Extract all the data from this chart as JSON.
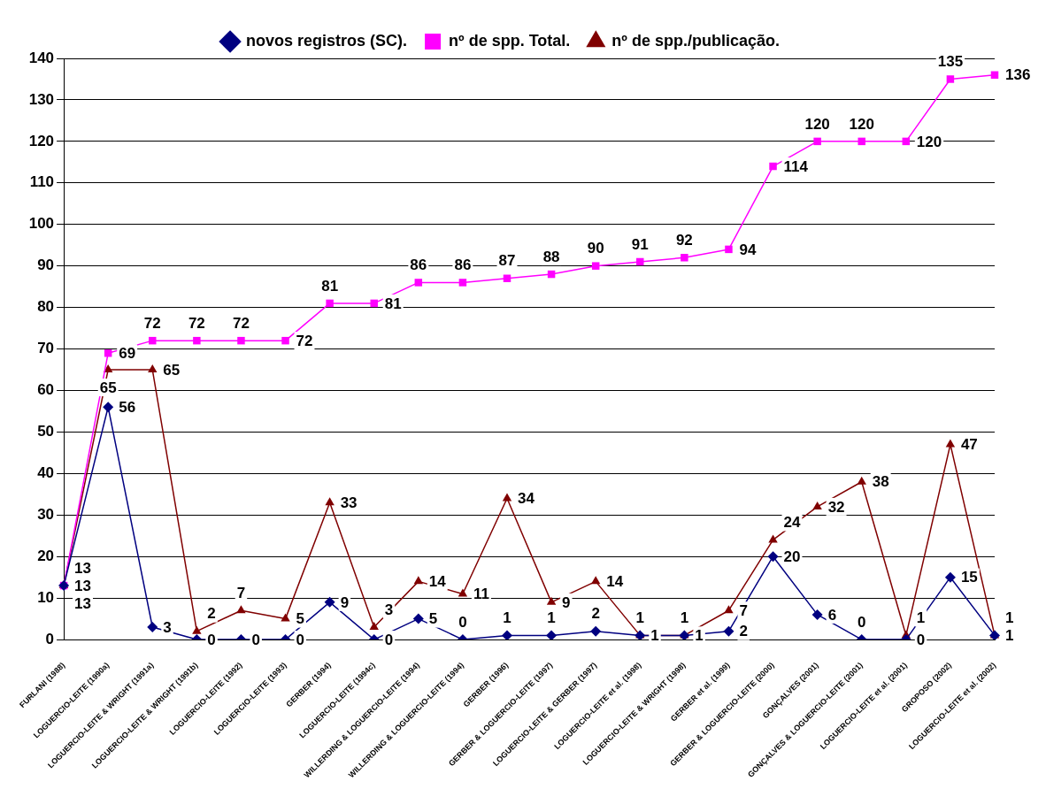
{
  "chart_data": {
    "type": "line",
    "categories": [
      "FURLANI (1988)",
      "LOGUERCIO-LEITE (1990a)",
      "LOGUERCIO-LEITE & WRIGHT (1991a)",
      "LOGUERCIO-LEITE & WRIGHT (1991b)",
      "LOGUERCIO-LEITE (1992)",
      "LOGUERCIO-LEITE (1993)",
      "GERBER (1994)",
      "LOGUERCIO-LEITE (1994c)",
      "WILLERDING & LOGUERCIO-LEITE (1994)",
      "WILLERDING & LOGUERCIO-LEITE (1994)",
      "GERBER (1996)",
      "GERBER & LOGUERCIO-LEITE (1997)",
      "LOGUERCIO-LEITE & GERBER (1997)",
      "LOGUERCIO-LEITE et al. (1998)",
      "LOGUERCIO-LEITE & WRIGHT (1998)",
      "GERBER et al. (1999)",
      "GERBER & LOGUERCIO-LEITE (2000)",
      "GONÇALVES (2001)",
      "GONÇALVES & LOGUERCIO-LEITE (2001)",
      "LOGUERCIO-LEITE et al. (2001)",
      "GROPOSO (2002)",
      "LOGUERCIO-LEITE et al. (2002)"
    ],
    "series": [
      {
        "name": "novos registros (SC).",
        "color": "#000080",
        "marker": "diamond",
        "values": [
          13,
          56,
          3,
          0,
          0,
          0,
          9,
          0,
          5,
          0,
          1,
          1,
          2,
          1,
          1,
          2,
          20,
          6,
          0,
          0,
          15,
          1
        ]
      },
      {
        "name": "nº de spp. Total.",
        "color": "#ff00ff",
        "marker": "square",
        "values": [
          13,
          69,
          72,
          72,
          72,
          72,
          81,
          81,
          86,
          86,
          87,
          88,
          90,
          91,
          92,
          94,
          114,
          120,
          120,
          120,
          135,
          136
        ]
      },
      {
        "name": "nº de spp./publicação.",
        "color": "#800000",
        "marker": "triangle",
        "values": [
          13,
          65,
          65,
          2,
          7,
          5,
          33,
          3,
          14,
          11,
          34,
          9,
          14,
          1,
          1,
          7,
          24,
          32,
          38,
          1,
          47,
          1
        ]
      }
    ],
    "ylim": [
      0,
      140
    ],
    "yticks": [
      0,
      10,
      20,
      30,
      40,
      50,
      60,
      70,
      80,
      90,
      100,
      110,
      120,
      130,
      140
    ],
    "grid": "y",
    "legend": "top",
    "data_labels": true,
    "line_style": "solid"
  }
}
